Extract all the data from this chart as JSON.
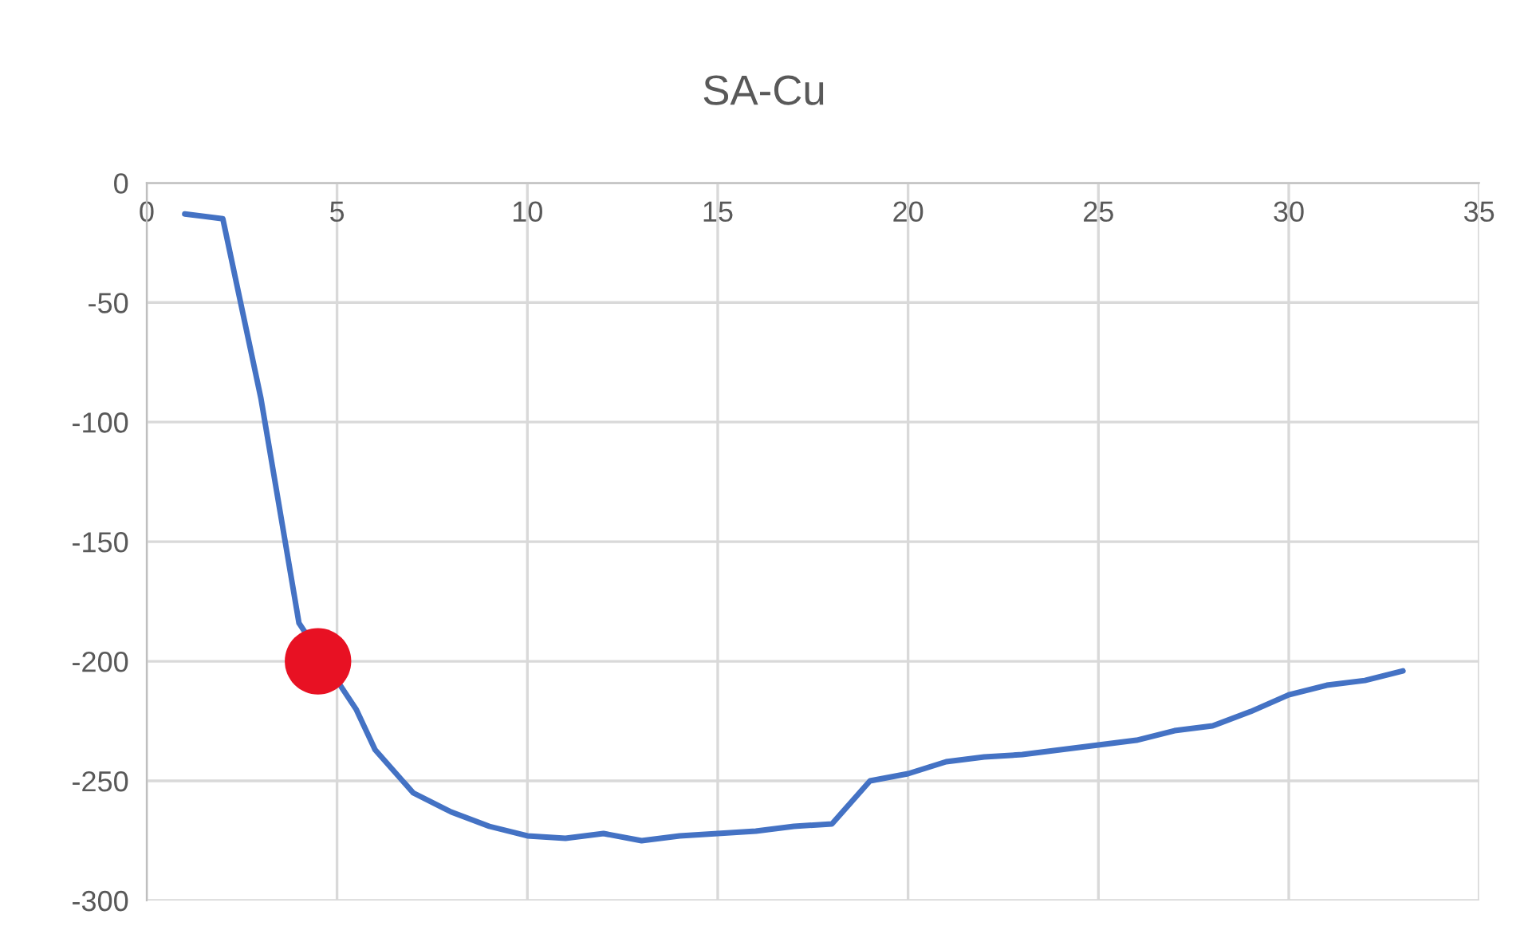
{
  "chart_data": {
    "type": "line",
    "title": "SA-Cu",
    "xlim": [
      0,
      35
    ],
    "xticks": [
      0,
      5,
      10,
      15,
      20,
      25,
      30,
      35
    ],
    "ylim": [
      -300,
      0
    ],
    "yticks": [
      -300,
      -250,
      -200,
      -150,
      -100,
      -50,
      0
    ],
    "grid": true,
    "legend": false,
    "marker": "none",
    "line_style": "solid",
    "series": [
      {
        "color": "#4472c4",
        "x": [
          1,
          2,
          3,
          4,
          5.5,
          6,
          7,
          8,
          9,
          10,
          11,
          12,
          13,
          14,
          15,
          16,
          17,
          18,
          19,
          20,
          21,
          22,
          23,
          24,
          25,
          26,
          27,
          28,
          29,
          30,
          31,
          32,
          33
        ],
        "values": [
          -13,
          -15,
          -90,
          -184,
          -220,
          -237,
          -255,
          -263,
          -269,
          -273,
          -274,
          -272,
          -275,
          -273,
          -272,
          -271,
          -269,
          -268,
          -250,
          -247,
          -242,
          -240,
          -239,
          -237,
          -235,
          -233,
          -229,
          -227,
          -221,
          -214,
          -210,
          -208,
          -204
        ]
      },
      {
        "type": "scatter",
        "color": "#e81123",
        "marker": "circle",
        "x": [
          4.5
        ],
        "values": [
          -200
        ]
      }
    ]
  }
}
